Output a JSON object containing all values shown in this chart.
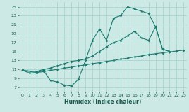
{
  "background_color": "#cce9e5",
  "grid_color": "#aad5d0",
  "line_color": "#1b7b6e",
  "xlabel": "Humidex (Indice chaleur)",
  "xlim": [
    -0.5,
    23.5
  ],
  "ylim": [
    6,
    26
  ],
  "xticks": [
    0,
    1,
    2,
    3,
    4,
    5,
    6,
    7,
    8,
    9,
    10,
    11,
    12,
    13,
    14,
    15,
    16,
    17,
    18,
    19,
    20,
    21,
    22,
    23
  ],
  "yticks": [
    7,
    9,
    11,
    13,
    15,
    17,
    19,
    21,
    23,
    25
  ],
  "s1_x": [
    0,
    1,
    2,
    3,
    4,
    5,
    6,
    7,
    8,
    9,
    10,
    11,
    12,
    13,
    14,
    15,
    16,
    17,
    18,
    19,
    20,
    21
  ],
  "s1_y": [
    10.8,
    10.2,
    10.2,
    10.8,
    8.5,
    8.2,
    7.5,
    7.3,
    8.8,
    13.0,
    17.5,
    20.0,
    17.5,
    22.5,
    23.0,
    25.0,
    24.5,
    24.0,
    23.5,
    20.5,
    15.5,
    15.0
  ],
  "s2_x": [
    0,
    2,
    3,
    4,
    5,
    6,
    7,
    8,
    9,
    10,
    11,
    12,
    13,
    14,
    15,
    16,
    17,
    18,
    19,
    20,
    21,
    22,
    23
  ],
  "s2_y": [
    10.8,
    10.3,
    10.5,
    10.8,
    11.0,
    11.3,
    11.5,
    11.8,
    12.0,
    12.3,
    12.5,
    12.8,
    13.0,
    13.3,
    13.5,
    13.8,
    14.0,
    14.3,
    14.5,
    14.7,
    14.9,
    15.1,
    15.3
  ],
  "s3_x": [
    0,
    2,
    3,
    4,
    5,
    6,
    7,
    8,
    9,
    10,
    11,
    12,
    13,
    14,
    15,
    16,
    17,
    18,
    19,
    20,
    21
  ],
  "s3_y": [
    10.8,
    10.5,
    11.0,
    11.3,
    11.8,
    12.3,
    12.8,
    13.0,
    13.3,
    14.0,
    15.0,
    16.0,
    17.0,
    17.5,
    18.5,
    19.5,
    18.0,
    17.5,
    20.5,
    15.5,
    15.0
  ]
}
